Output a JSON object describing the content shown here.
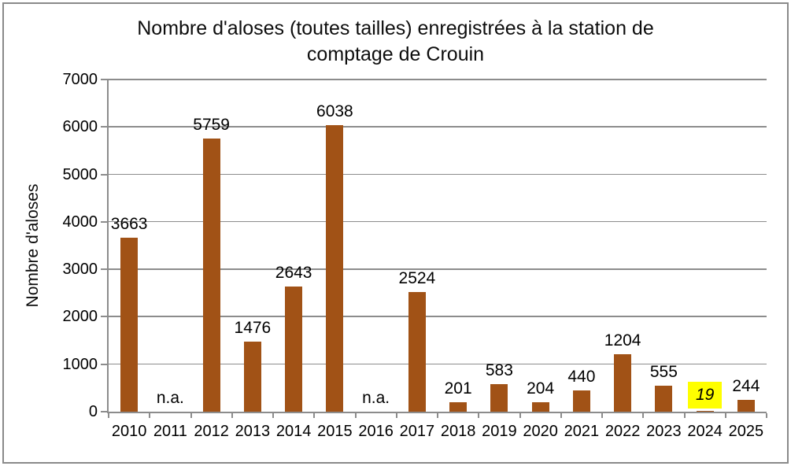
{
  "colors": {
    "bar": "#A15216",
    "grid": "#8C8C8C",
    "axis": "#8C8C8C",
    "highlight_background": "#FFFF00",
    "text": "#000000",
    "frame_border": "#8A8A8A",
    "background": "#FFFFFF"
  },
  "chart_data": {
    "type": "bar",
    "title": "Nombre d'aloses (toutes tailles) enregistrées à la station de comptage de Crouin",
    "title_lines": [
      "Nombre d'aloses (toutes tailles) enregistrées à la station de",
      "comptage de Crouin"
    ],
    "xlabel": "",
    "ylabel": "Nombre d'aloses",
    "categories": [
      "2010",
      "2011",
      "2012",
      "2013",
      "2014",
      "2015",
      "2016",
      "2017",
      "2018",
      "2019",
      "2020",
      "2021",
      "2022",
      "2023",
      "2024",
      "2025"
    ],
    "values": [
      3663,
      null,
      5759,
      1476,
      2643,
      6038,
      null,
      2524,
      201,
      583,
      204,
      440,
      1204,
      555,
      19,
      244
    ],
    "labels": [
      "3663",
      "n.a.",
      "5759",
      "1476",
      "2643",
      "6038",
      "n.a.",
      "2524",
      "201",
      "583",
      "204",
      "440",
      "1204",
      "555",
      "19",
      "244"
    ],
    "missing_label": "n.a.",
    "missing_years": [
      "2011",
      "2016"
    ],
    "highlighted_year": "2024",
    "highlighted_value": 19,
    "ylim": [
      0,
      7000
    ],
    "yticks": [
      0,
      1000,
      2000,
      3000,
      4000,
      5000,
      6000,
      7000
    ],
    "grid": true,
    "legend": false,
    "bar_color": "#A15216"
  }
}
